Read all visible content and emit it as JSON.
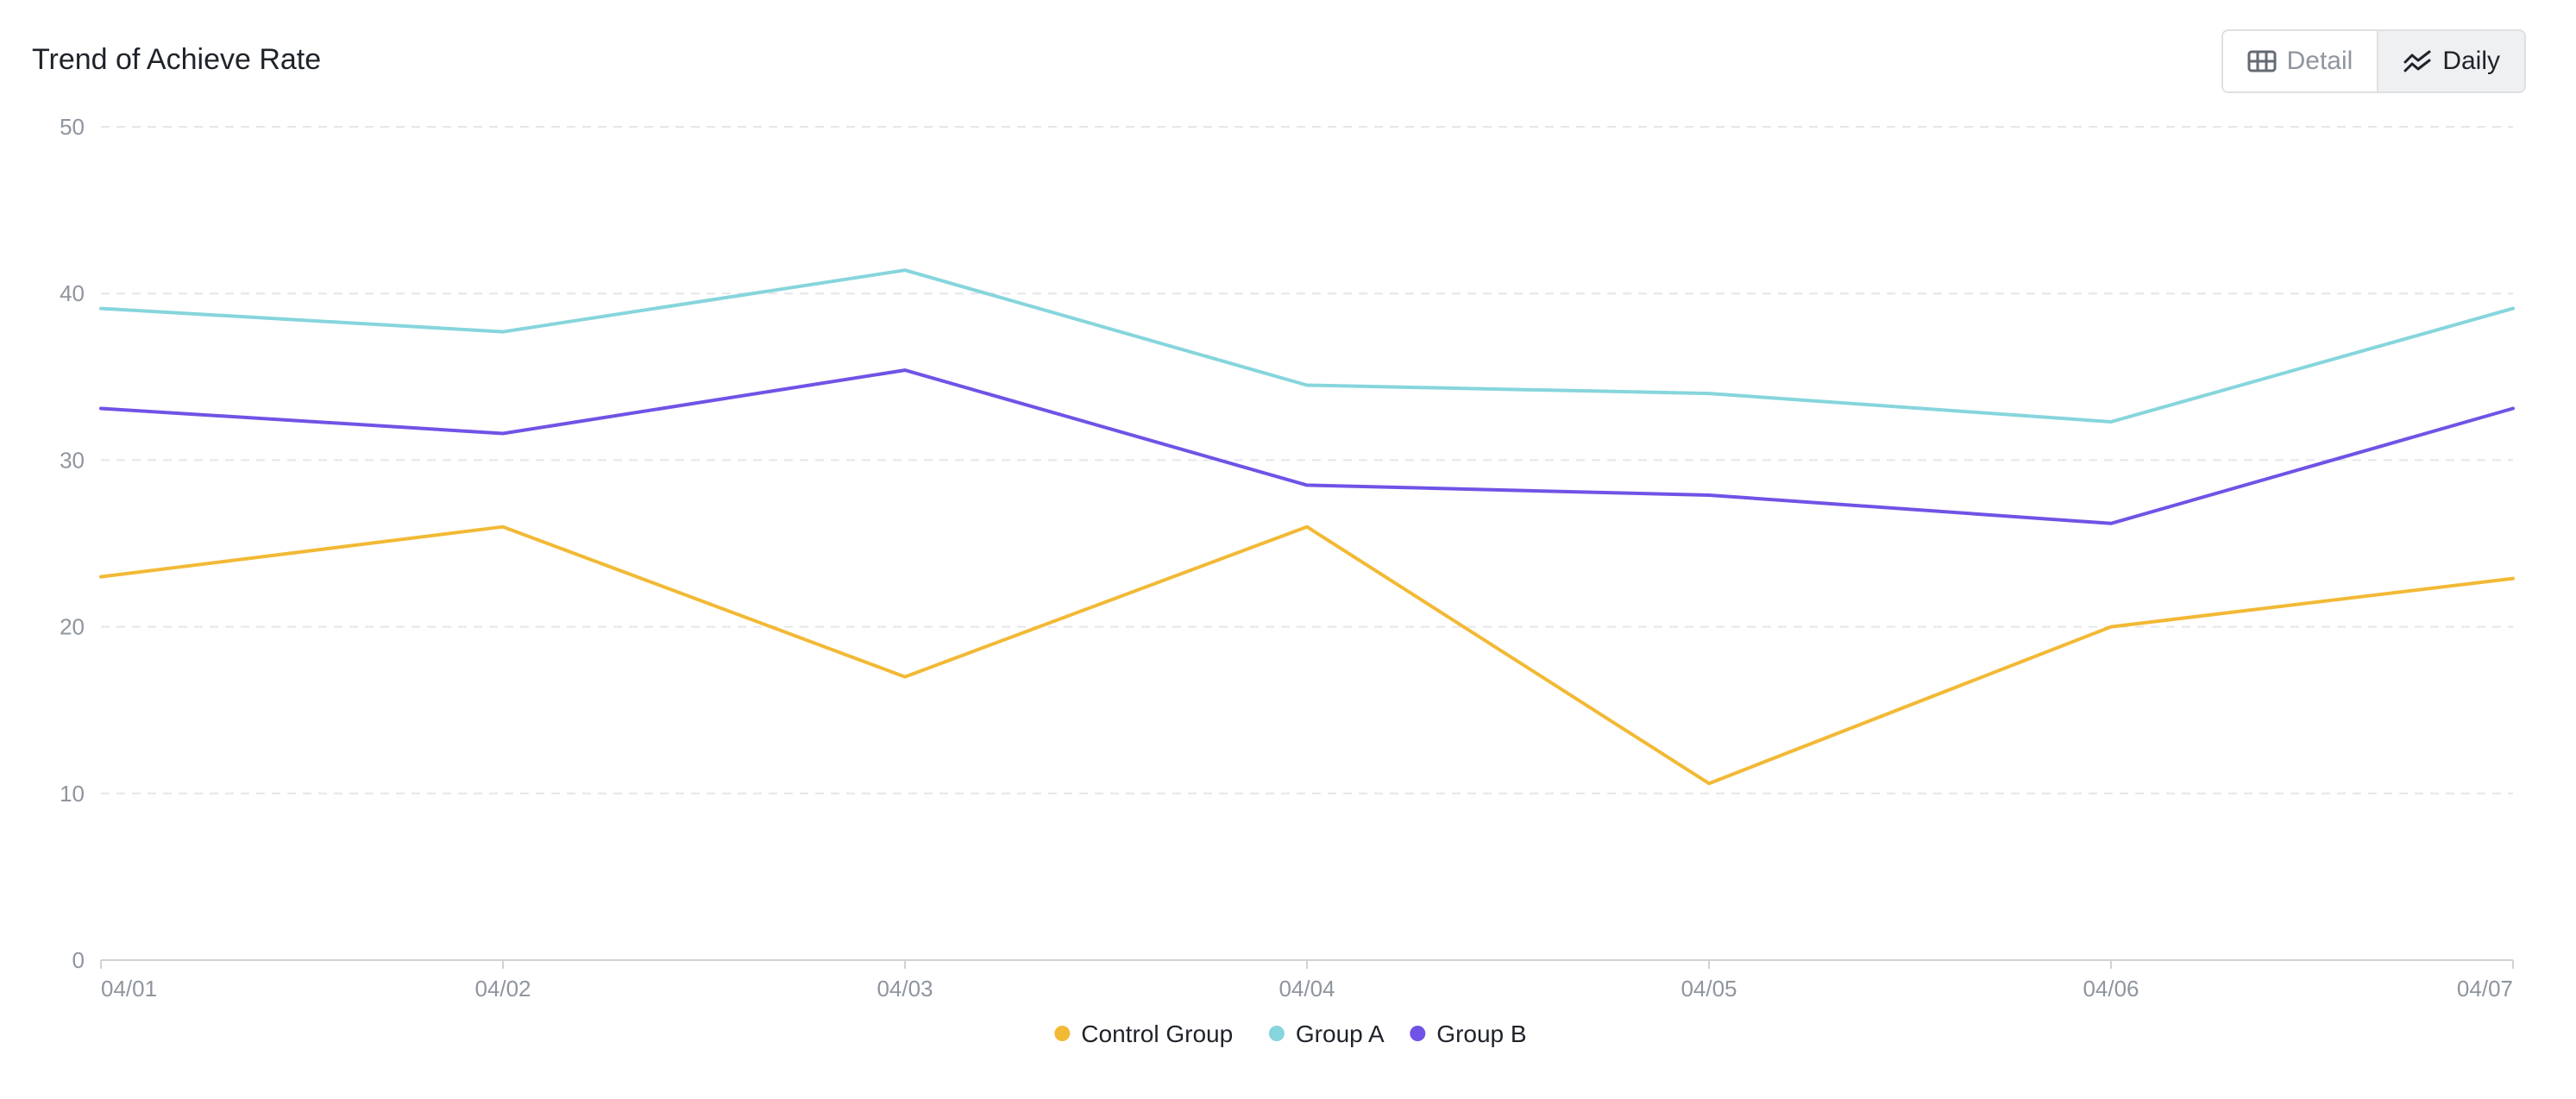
{
  "header": {
    "title": "Trend of Achieve Rate"
  },
  "view_toggle": {
    "detail_label": "Detail",
    "detail_icon": "table-icon",
    "daily_label": "Daily",
    "daily_icon": "line-chart-icon",
    "selected": "Daily"
  },
  "chart_data": {
    "type": "line",
    "title": "Trend of Achieve Rate",
    "x": [
      "04/01",
      "04/02",
      "04/03",
      "04/04",
      "04/05",
      "04/06",
      "04/07"
    ],
    "ylim": [
      0,
      50
    ],
    "yticks": [
      0,
      10,
      20,
      30,
      40,
      50
    ],
    "grid": true,
    "legend_position": "bottom",
    "series": [
      {
        "name": "Control Group",
        "color": "#f2b935",
        "values": [
          23.0,
          26.0,
          17.0,
          26.0,
          10.6,
          20.0,
          22.9
        ]
      },
      {
        "name": "Group A",
        "color": "#86d5dc",
        "values": [
          39.1,
          37.7,
          41.4,
          34.5,
          34.0,
          32.3,
          39.1
        ]
      },
      {
        "name": "Group B",
        "color": "#7053e6",
        "values": [
          33.1,
          31.6,
          35.4,
          28.5,
          27.9,
          26.2,
          33.1
        ]
      }
    ]
  }
}
